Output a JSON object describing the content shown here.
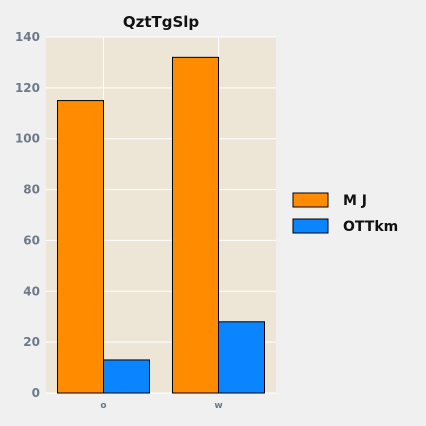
{
  "chart_data": {
    "type": "bar",
    "title": "QztTgSlp",
    "xlabel": "",
    "ylabel": "",
    "categories": [
      "o",
      "w"
    ],
    "series": [
      {
        "name": "M J",
        "color": "#ff8c00",
        "values": [
          115,
          132
        ]
      },
      {
        "name": "OTTkm",
        "color": "#0a84ff",
        "values": [
          13,
          28
        ]
      }
    ],
    "ylim": [
      0,
      140
    ],
    "yticks": [
      0,
      20,
      40,
      60,
      80,
      100,
      120,
      140
    ],
    "grid": true,
    "legend_position": "right",
    "colors": {
      "plot_background": "#ede6d6",
      "page_background": "#f0f0f0",
      "grid": "#ffffff",
      "bar_edge": "#000000"
    }
  }
}
